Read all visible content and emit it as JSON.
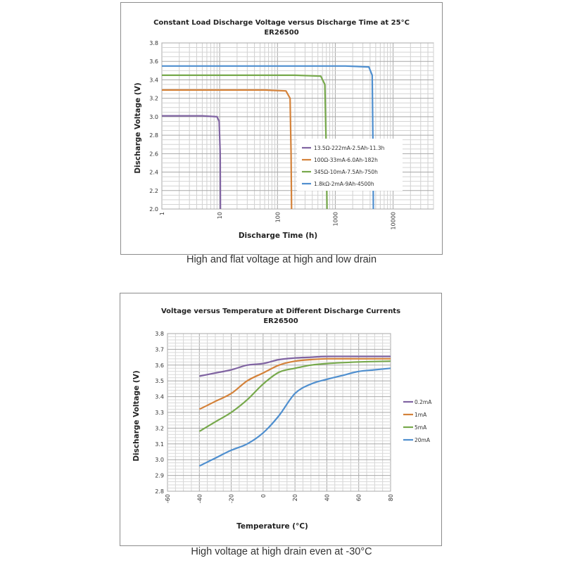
{
  "captions": {
    "chart1": "High and flat voltage at high and low drain",
    "chart2": "High voltage at high drain even at -30°C"
  },
  "chart_data": [
    {
      "type": "line",
      "title": "Constant Load Discharge Voltage versus Discharge Time at 25°C",
      "subtitle": "ER26500",
      "xlabel": "Discharge  Time (h)",
      "ylabel": "Discharge Voltage (V)",
      "x_scale": "log",
      "xlim": [
        1,
        50000
      ],
      "ylim": [
        2.0,
        3.8
      ],
      "x_ticks": [
        "1",
        "10",
        "100",
        "1000",
        "10000"
      ],
      "y_ticks": [
        "2.0",
        "2.2",
        "2.4",
        "2.6",
        "2.8",
        "3.0",
        "3.2",
        "3.4",
        "3.6",
        "3.8"
      ],
      "grid": true,
      "legend_position": "inside-right",
      "series": [
        {
          "name": "13.5Ω-222mA-2.5Ah-11.3h",
          "color": "#8064a2",
          "points": [
            [
              1,
              3.01
            ],
            [
              5,
              3.01
            ],
            [
              9,
              3.0
            ],
            [
              9.8,
              2.95
            ],
            [
              10.2,
              2.6
            ],
            [
              10.3,
              2.0
            ]
          ]
        },
        {
          "name": "100Ω-33mA-6.0Ah-182h",
          "color": "#d4823a",
          "points": [
            [
              1,
              3.29
            ],
            [
              60,
              3.29
            ],
            [
              140,
              3.28
            ],
            [
              165,
              3.2
            ],
            [
              172,
              2.6
            ],
            [
              175,
              2.0
            ]
          ]
        },
        {
          "name": "345Ω-10mA-7.5Ah-750h",
          "color": "#77a94c",
          "points": [
            [
              1,
              3.45
            ],
            [
              200,
              3.45
            ],
            [
              560,
              3.44
            ],
            [
              660,
              3.35
            ],
            [
              700,
              2.6
            ],
            [
              720,
              2.0
            ]
          ]
        },
        {
          "name": "1.8kΩ-2mA-9Ah-4500h",
          "color": "#4f8fcf",
          "points": [
            [
              1,
              3.55
            ],
            [
              1500,
              3.55
            ],
            [
              3800,
              3.54
            ],
            [
              4350,
              3.45
            ],
            [
              4500,
              2.6
            ],
            [
              4550,
              2.0
            ]
          ]
        }
      ]
    },
    {
      "type": "line",
      "title": "Voltage versus Temperature at Different Discharge Currents",
      "subtitle": "ER26500",
      "xlabel": "Temperature (°C)",
      "ylabel": "Discharge Voltage (V)",
      "xlim": [
        -60,
        80
      ],
      "ylim": [
        2.8,
        3.8
      ],
      "x_ticks": [
        "-60",
        "-40",
        "-20",
        "0",
        "20",
        "40",
        "60",
        "80"
      ],
      "y_ticks": [
        "2.8",
        "2.9",
        "3.0",
        "3.1",
        "3.2",
        "3.3",
        "3.4",
        "3.5",
        "3.6",
        "3.7",
        "3.8"
      ],
      "grid": true,
      "legend_position": "right",
      "series": [
        {
          "name": "0.2mA",
          "color": "#8064a2",
          "points": [
            [
              -40,
              3.53
            ],
            [
              -30,
              3.55
            ],
            [
              -20,
              3.57
            ],
            [
              -10,
              3.6
            ],
            [
              0,
              3.61
            ],
            [
              10,
              3.635
            ],
            [
              20,
              3.645
            ],
            [
              30,
              3.65
            ],
            [
              40,
              3.655
            ],
            [
              60,
              3.655
            ],
            [
              80,
              3.655
            ]
          ]
        },
        {
          "name": "1mA",
          "color": "#d4823a",
          "points": [
            [
              -40,
              3.32
            ],
            [
              -30,
              3.37
            ],
            [
              -20,
              3.42
            ],
            [
              -10,
              3.5
            ],
            [
              0,
              3.55
            ],
            [
              10,
              3.6
            ],
            [
              20,
              3.625
            ],
            [
              30,
              3.635
            ],
            [
              40,
              3.64
            ],
            [
              60,
              3.64
            ],
            [
              80,
              3.64
            ]
          ]
        },
        {
          "name": "5mA",
          "color": "#77a94c",
          "points": [
            [
              -40,
              3.18
            ],
            [
              -30,
              3.24
            ],
            [
              -20,
              3.3
            ],
            [
              -10,
              3.38
            ],
            [
              0,
              3.48
            ],
            [
              10,
              3.555
            ],
            [
              20,
              3.58
            ],
            [
              30,
              3.6
            ],
            [
              40,
              3.61
            ],
            [
              60,
              3.62
            ],
            [
              80,
              3.625
            ]
          ]
        },
        {
          "name": "20mA",
          "color": "#4f8fcf",
          "points": [
            [
              -40,
              2.96
            ],
            [
              -30,
              3.01
            ],
            [
              -20,
              3.06
            ],
            [
              -10,
              3.1
            ],
            [
              0,
              3.17
            ],
            [
              10,
              3.28
            ],
            [
              20,
              3.42
            ],
            [
              30,
              3.48
            ],
            [
              40,
              3.51
            ],
            [
              50,
              3.535
            ],
            [
              60,
              3.56
            ],
            [
              70,
              3.57
            ],
            [
              80,
              3.58
            ]
          ]
        }
      ]
    }
  ]
}
